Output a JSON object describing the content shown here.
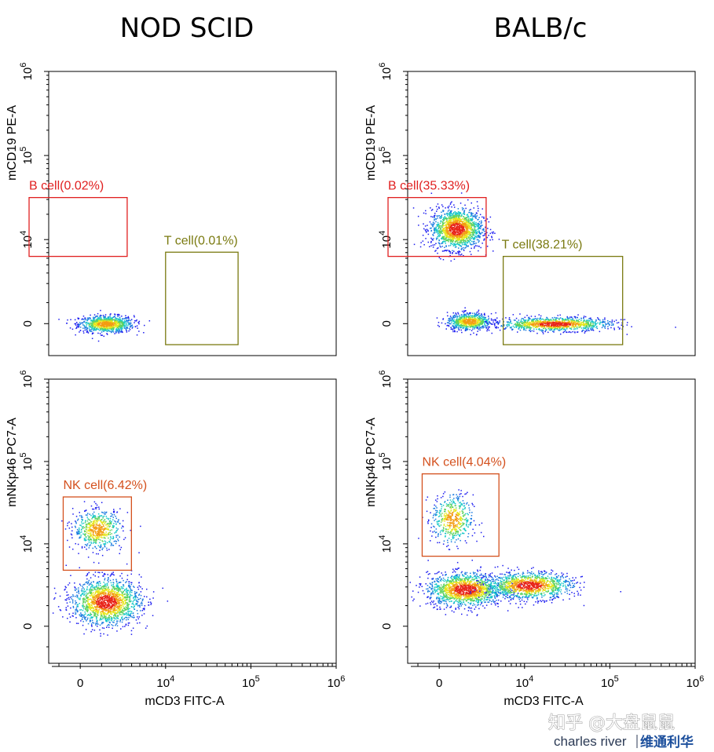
{
  "figure": {
    "column_titles": [
      "NOD SCID",
      "BALB/c"
    ],
    "watermark": {
      "line1": "知乎 @大盘鼠鼠",
      "brand": "charles river",
      "brand_cn": "维通利华"
    }
  },
  "chart_data": [
    {
      "type": "scatter",
      "panel": "top-left",
      "strain": "NOD SCID",
      "xlabel": "",
      "ylabel": "mCD19 PE-A",
      "x_ticks": [
        {
          "label": "0",
          "exp": ""
        },
        {
          "label": "10",
          "exp": "4"
        },
        {
          "label": "10",
          "exp": "5"
        },
        {
          "label": "10",
          "exp": "6"
        }
      ],
      "y_ticks": [
        {
          "label": "0",
          "exp": ""
        },
        {
          "label": "10",
          "exp": "4"
        },
        {
          "label": "10",
          "exp": "5"
        },
        {
          "label": "10",
          "exp": "6"
        }
      ],
      "scale": "biexponential",
      "gates": [
        {
          "label": "B cell(0.02%)",
          "color": "#e02020",
          "x": [
            -0.6,
            0.55
          ],
          "y": [
            0.8,
            1.5
          ]
        },
        {
          "label": "T cell(0.01%)",
          "color": "#7a7a10",
          "x": [
            1.0,
            1.85
          ],
          "y": [
            -0.25,
            0.85
          ]
        }
      ],
      "populations": [
        {
          "cx": 0.3,
          "cy": 0.0,
          "sx": 0.16,
          "sy": 0.05,
          "n": 900
        }
      ]
    },
    {
      "type": "scatter",
      "panel": "top-right",
      "strain": "BALB/c",
      "xlabel": "",
      "ylabel": "mCD19 PE-A",
      "x_ticks": [
        {
          "label": "0",
          "exp": ""
        },
        {
          "label": "10",
          "exp": "4"
        },
        {
          "label": "10",
          "exp": "5"
        },
        {
          "label": "10",
          "exp": "6"
        }
      ],
      "y_ticks": [
        {
          "label": "0",
          "exp": ""
        },
        {
          "label": "10",
          "exp": "4"
        },
        {
          "label": "10",
          "exp": "5"
        },
        {
          "label": "10",
          "exp": "6"
        }
      ],
      "scale": "biexponential",
      "gates": [
        {
          "label": "B cell(35.33%)",
          "color": "#e02020",
          "x": [
            -0.6,
            0.55
          ],
          "y": [
            0.8,
            1.5
          ]
        },
        {
          "label": "T cell(38.21%)",
          "color": "#7a7a10",
          "x": [
            0.75,
            2.15
          ],
          "y": [
            -0.25,
            0.8
          ]
        }
      ],
      "populations": [
        {
          "cx": 0.2,
          "cy": 1.13,
          "sx": 0.15,
          "sy": 0.12,
          "n": 1500
        },
        {
          "cx": 0.35,
          "cy": 0.03,
          "sx": 0.13,
          "sy": 0.05,
          "n": 700
        },
        {
          "cx": 1.35,
          "cy": 0.0,
          "sx": 0.33,
          "sy": 0.04,
          "n": 1100
        }
      ]
    },
    {
      "type": "scatter",
      "panel": "bottom-left",
      "strain": "NOD SCID",
      "xlabel": "mCD3 FITC-A",
      "ylabel": "mNKp46 PC7-A",
      "x_ticks": [
        {
          "label": "0",
          "exp": ""
        },
        {
          "label": "10",
          "exp": "4"
        },
        {
          "label": "10",
          "exp": "5"
        },
        {
          "label": "10",
          "exp": "6"
        }
      ],
      "y_ticks": [
        {
          "label": "0",
          "exp": ""
        },
        {
          "label": "10",
          "exp": "4"
        },
        {
          "label": "10",
          "exp": "5"
        },
        {
          "label": "10",
          "exp": "6"
        }
      ],
      "scale": "biexponential",
      "gates": [
        {
          "label": "NK cell(6.42%)",
          "color": "#d4511e",
          "x": [
            -0.2,
            0.6
          ],
          "y": [
            0.68,
            1.57
          ]
        }
      ],
      "populations": [
        {
          "cx": 0.2,
          "cy": 1.18,
          "sx": 0.14,
          "sy": 0.12,
          "n": 600
        },
        {
          "cx": 0.3,
          "cy": 0.3,
          "sx": 0.2,
          "sy": 0.14,
          "n": 1600
        }
      ]
    },
    {
      "type": "scatter",
      "panel": "bottom-right",
      "strain": "BALB/c",
      "xlabel": "mCD3 FITC-A",
      "ylabel": "mNKp46 PC7-A",
      "x_ticks": [
        {
          "label": "0",
          "exp": ""
        },
        {
          "label": "10",
          "exp": "4"
        },
        {
          "label": "10",
          "exp": "5"
        },
        {
          "label": "10",
          "exp": "6"
        }
      ],
      "y_ticks": [
        {
          "label": "0",
          "exp": ""
        },
        {
          "label": "10",
          "exp": "4"
        },
        {
          "label": "10",
          "exp": "5"
        },
        {
          "label": "10",
          "exp": "6"
        }
      ],
      "scale": "biexponential",
      "gates": [
        {
          "label": "NK cell(4.04%)",
          "color": "#d4511e",
          "x": [
            -0.2,
            0.7
          ],
          "y": [
            0.85,
            1.85
          ]
        }
      ],
      "populations": [
        {
          "cx": 0.15,
          "cy": 1.3,
          "sx": 0.12,
          "sy": 0.15,
          "n": 500
        },
        {
          "cx": 0.3,
          "cy": 0.45,
          "sx": 0.22,
          "sy": 0.1,
          "n": 1500
        },
        {
          "cx": 1.05,
          "cy": 0.5,
          "sx": 0.25,
          "sy": 0.08,
          "n": 1200
        }
      ]
    }
  ]
}
